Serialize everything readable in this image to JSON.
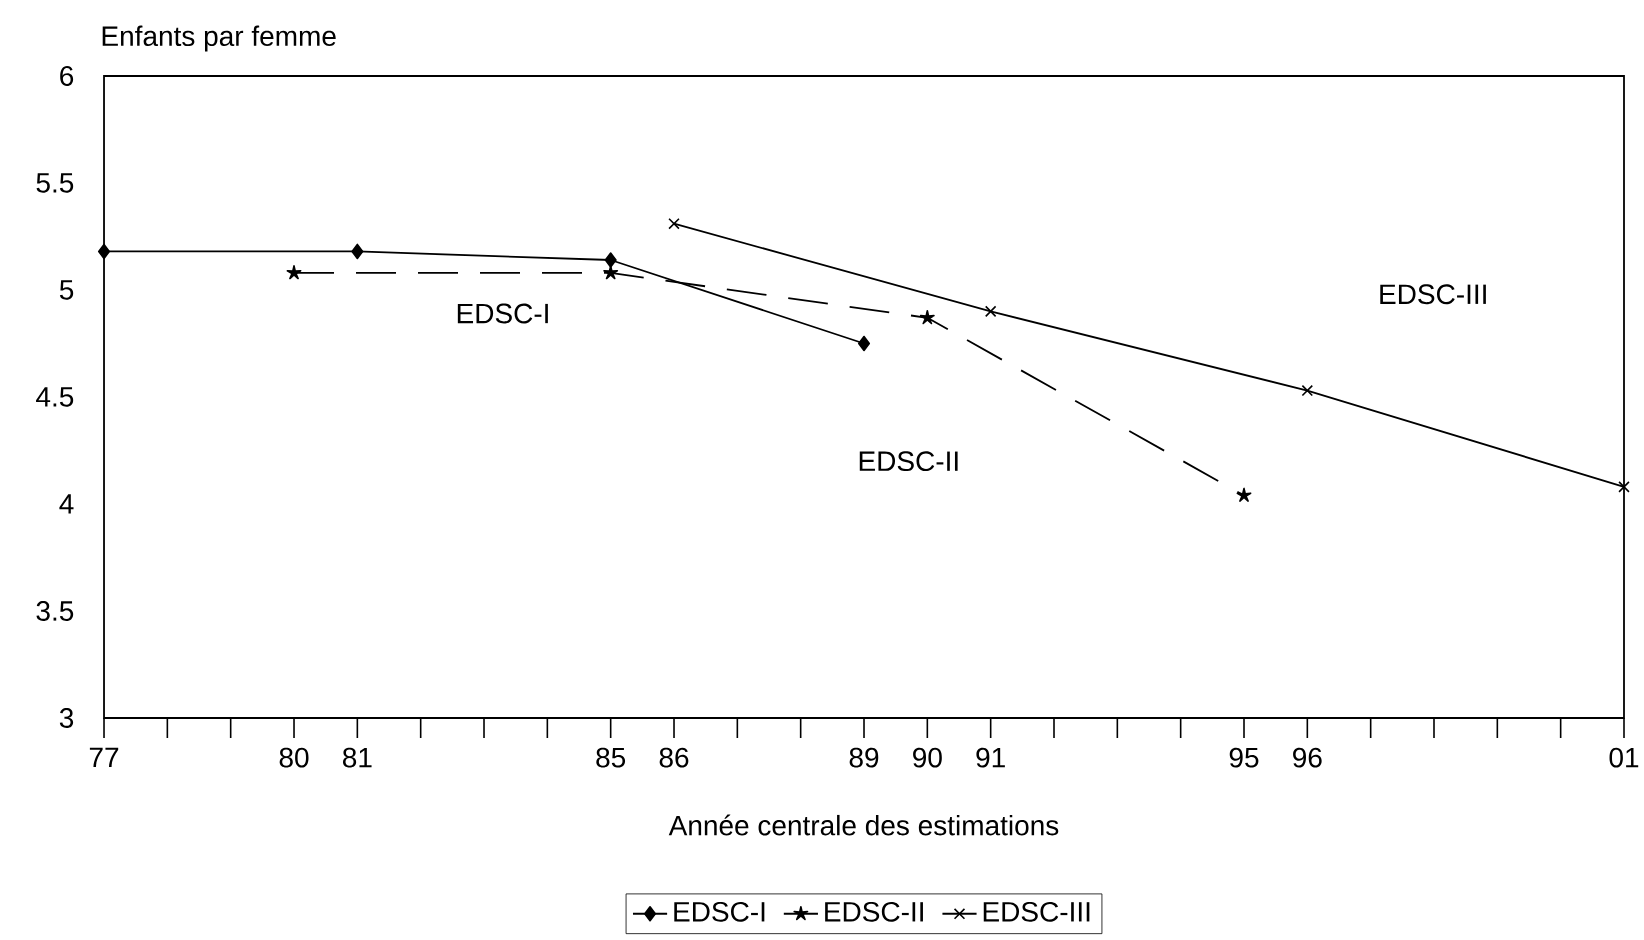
{
  "chart_data": {
    "type": "line",
    "ylabel": "Enfants par femme",
    "xlabel": "Année centrale des estimations",
    "xlim": [
      1977,
      2001
    ],
    "ylim": [
      3,
      6
    ],
    "xticks": [
      {
        "value": 1977,
        "label": "77"
      },
      {
        "value": 1978,
        "label": null
      },
      {
        "value": 1979,
        "label": null
      },
      {
        "value": 1980,
        "label": "80"
      },
      {
        "value": 1981,
        "label": "81"
      },
      {
        "value": 1982,
        "label": null
      },
      {
        "value": 1983,
        "label": null
      },
      {
        "value": 1984,
        "label": null
      },
      {
        "value": 1985,
        "label": "85"
      },
      {
        "value": 1986,
        "label": "86"
      },
      {
        "value": 1987,
        "label": null
      },
      {
        "value": 1988,
        "label": null
      },
      {
        "value": 1989,
        "label": "89"
      },
      {
        "value": 1990,
        "label": "90"
      },
      {
        "value": 1991,
        "label": "91"
      },
      {
        "value": 1992,
        "label": null
      },
      {
        "value": 1993,
        "label": null
      },
      {
        "value": 1994,
        "label": null
      },
      {
        "value": 1995,
        "label": "95"
      },
      {
        "value": 1996,
        "label": "96"
      },
      {
        "value": 1997,
        "label": null
      },
      {
        "value": 1998,
        "label": null
      },
      {
        "value": 1999,
        "label": null
      },
      {
        "value": 2000,
        "label": null
      },
      {
        "value": 2001,
        "label": "01"
      }
    ],
    "yticks": [
      3,
      3.5,
      4,
      4.5,
      5,
      5.5,
      6
    ],
    "grid": false,
    "legend": "bottom",
    "series": [
      {
        "name": "EDSC-I",
        "color": "#000000",
        "marker": "diamond",
        "line_style": "solid",
        "x": [
          1977,
          1981,
          1985,
          1989
        ],
        "values": [
          5.18,
          5.18,
          5.14,
          4.75
        ]
      },
      {
        "name": "EDSC-II",
        "color": "#000000",
        "marker": "star",
        "line_style": "dashed",
        "x": [
          1980,
          1985,
          1990,
          1995
        ],
        "values": [
          5.08,
          5.08,
          4.87,
          4.04
        ]
      },
      {
        "name": "EDSC-III",
        "color": "#000000",
        "marker": "cross",
        "line_style": "solid",
        "x": [
          1986,
          1991,
          1996,
          2001
        ],
        "values": [
          5.31,
          4.9,
          4.53,
          4.08
        ]
      }
    ],
    "annotations": [
      "EDSC-I",
      "EDSC-II",
      "EDSC-III"
    ]
  }
}
